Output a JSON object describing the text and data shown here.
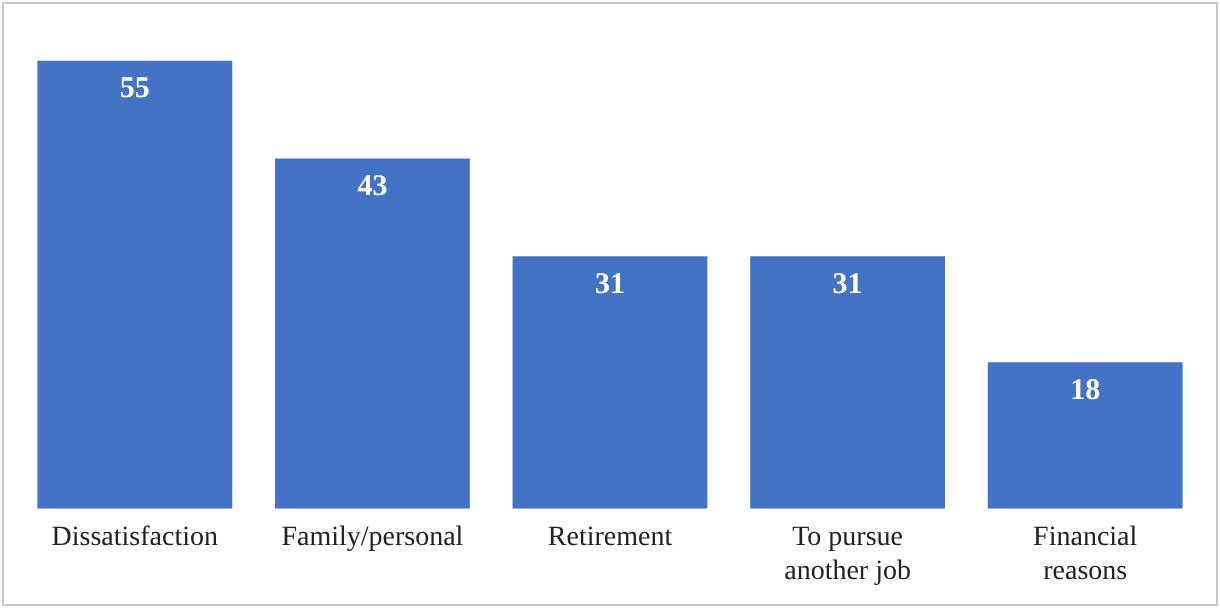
{
  "chart_data": {
    "type": "bar",
    "categories": [
      "Dissatisfaction",
      "Family/personal",
      "Retirement",
      "To pursue another job",
      "Financial reasons"
    ],
    "values": [
      55,
      43,
      31,
      31,
      18
    ],
    "color": "#4472c4",
    "data_labels": true,
    "legend": false
  }
}
